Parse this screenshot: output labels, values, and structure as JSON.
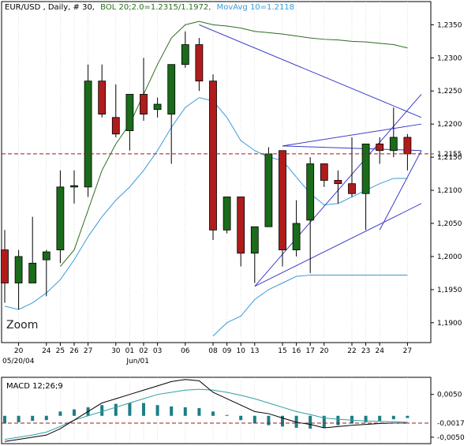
{
  "chart_data": {
    "type": "candlestick",
    "header": {
      "symbol_text": "EUR/USD , Daily, # 30,",
      "bol_text": "BOL 20;2.0=1.2315/1.1972,",
      "ma_text": "MovAvg 10=1.2118"
    },
    "watermark": "Zoom",
    "price_axis": {
      "ylim": [
        1.187,
        1.2385
      ],
      "ticks": [
        "1,2350",
        "1,2300",
        "1,2250",
        "1,2200",
        "1,2150",
        "1,2100",
        "1,2050",
        "1,2000",
        "1,1950",
        "1,1900"
      ],
      "tick_values": [
        1.235,
        1.23,
        1.225,
        1.22,
        1.215,
        1.21,
        1.205,
        1.2,
        1.195,
        1.19
      ],
      "current_price": 1.2155,
      "current_price_label": "1,2155"
    },
    "x_axis": {
      "day_labels": [
        "20",
        "24",
        "25",
        "26",
        "27",
        "30",
        "01",
        "02",
        "03",
        "06",
        "08",
        "09",
        "10",
        "13",
        "15",
        "16",
        "17",
        "20",
        "22",
        "23",
        "24",
        "27"
      ],
      "day_label_candle_index": [
        1,
        3,
        4,
        5,
        6,
        8,
        9,
        10,
        11,
        13,
        15,
        16,
        17,
        18,
        20,
        21,
        22,
        23,
        25,
        26,
        27,
        29
      ],
      "date_labels": [
        "05/20/04",
        "Jun/01"
      ],
      "date_label_candle_index": [
        0,
        9
      ]
    },
    "candles": [
      {
        "o": 1.201,
        "c": 1.196,
        "h": 1.204,
        "l": 1.193
      },
      {
        "o": 1.196,
        "c": 1.2,
        "h": 1.201,
        "l": 1.192
      },
      {
        "o": 1.196,
        "c": 1.199,
        "h": 1.206,
        "l": 1.196
      },
      {
        "o": 1.1995,
        "c": 1.2007,
        "h": 1.201,
        "l": 1.194
      },
      {
        "o": 1.201,
        "c": 1.2105,
        "h": 1.213,
        "l": 1.199
      },
      {
        "o": 1.2105,
        "c": 1.2107,
        "h": 1.213,
        "l": 1.208
      },
      {
        "o": 1.2105,
        "c": 1.2265,
        "h": 1.229,
        "l": 1.209
      },
      {
        "o": 1.2265,
        "c": 1.2215,
        "h": 1.229,
        "l": 1.221
      },
      {
        "o": 1.221,
        "c": 1.2185,
        "h": 1.226,
        "l": 1.218
      },
      {
        "o": 1.219,
        "c": 1.2245,
        "h": 1.2245,
        "l": 1.216
      },
      {
        "o": 1.2245,
        "c": 1.2215,
        "h": 1.23,
        "l": 1.2205
      },
      {
        "o": 1.2222,
        "c": 1.223,
        "h": 1.224,
        "l": 1.221
      },
      {
        "o": 1.2215,
        "c": 1.229,
        "h": 1.229,
        "l": 1.214
      },
      {
        "o": 1.229,
        "c": 1.232,
        "h": 1.234,
        "l": 1.2285
      },
      {
        "o": 1.232,
        "c": 1.2265,
        "h": 1.233,
        "l": 1.225
      },
      {
        "o": 1.2265,
        "c": 1.204,
        "h": 1.2275,
        "l": 1.2025
      },
      {
        "o": 1.204,
        "c": 1.209,
        "h": 1.209,
        "l": 1.2035
      },
      {
        "o": 1.209,
        "c": 1.2005,
        "h": 1.209,
        "l": 1.1985
      },
      {
        "o": 1.2005,
        "c": 1.2045,
        "h": 1.2045,
        "l": 1.196
      },
      {
        "o": 1.2045,
        "c": 1.2155,
        "h": 1.2165,
        "l": 1.2045
      },
      {
        "o": 1.216,
        "c": 1.201,
        "h": 1.216,
        "l": 1.1985
      },
      {
        "o": 1.201,
        "c": 1.205,
        "h": 1.2085,
        "l": 1.2
      },
      {
        "o": 1.2055,
        "c": 1.214,
        "h": 1.215,
        "l": 1.1975
      },
      {
        "o": 1.214,
        "c": 1.2115,
        "h": 1.214,
        "l": 1.2105
      },
      {
        "o": 1.2115,
        "c": 1.211,
        "h": 1.213,
        "l": 1.208
      },
      {
        "o": 1.211,
        "c": 1.2095,
        "h": 1.218,
        "l": 1.209
      },
      {
        "o": 1.2095,
        "c": 1.217,
        "h": 1.217,
        "l": 1.204
      },
      {
        "o": 1.217,
        "c": 1.216,
        "h": 1.218,
        "l": 1.214
      },
      {
        "o": 1.216,
        "c": 1.218,
        "h": 1.2225,
        "l": 1.215
      },
      {
        "o": 1.218,
        "c": 1.2155,
        "h": 1.2185,
        "l": 1.213
      }
    ],
    "bollinger_upper": [
      null,
      null,
      null,
      null,
      1.1985,
      1.201,
      1.207,
      1.213,
      1.217,
      1.22,
      1.2245,
      1.229,
      1.233,
      1.235,
      1.2355,
      1.235,
      1.2348,
      1.2345,
      1.234,
      1.2338,
      1.2336,
      1.2333,
      1.233,
      1.2328,
      1.2327,
      1.2325,
      1.2324,
      1.2322,
      1.232,
      1.2315
    ],
    "bollinger_lower": [
      null,
      null,
      null,
      null,
      null,
      null,
      null,
      null,
      null,
      null,
      null,
      null,
      null,
      null,
      null,
      1.188,
      1.19,
      1.191,
      1.1935,
      1.195,
      1.196,
      1.197,
      1.1972,
      1.1972,
      1.1972,
      1.1972,
      1.1972,
      1.1972,
      1.1972,
      1.1972
    ],
    "moving_average_10": [
      1.1925,
      1.192,
      1.193,
      1.1945,
      1.1965,
      1.1995,
      1.203,
      1.206,
      1.2085,
      1.2105,
      1.213,
      1.216,
      1.2195,
      1.2225,
      1.224,
      1.2235,
      1.221,
      1.2175,
      1.216,
      1.215,
      1.2145,
      1.212,
      1.2095,
      1.2078,
      1.208,
      1.209,
      1.21,
      1.211,
      1.2118,
      1.2118
    ],
    "trendlines": [
      {
        "from": [
          14,
          1.235
        ],
        "to": [
          30,
          1.221
        ]
      },
      {
        "from": [
          18,
          1.1955
        ],
        "to": [
          30,
          1.208
        ]
      },
      {
        "from": [
          18,
          1.1955
        ],
        "to": [
          30,
          1.2245
        ]
      },
      {
        "from": [
          20,
          1.2167
        ],
        "to": [
          30,
          1.22
        ]
      },
      {
        "from": [
          20,
          1.2167
        ],
        "to": [
          30,
          1.216
        ]
      },
      {
        "from": [
          27,
          1.204
        ],
        "to": [
          30,
          1.216
        ]
      }
    ],
    "macd": {
      "title": "MACD 12;26;9",
      "ylim": [
        -0.0065,
        0.009
      ],
      "ticks": [
        "0,0050",
        "-0,0050"
      ],
      "tick_values": [
        0.005,
        -0.005
      ],
      "current_label": "-0,0017",
      "current_value": -0.0017,
      "macd_line": [
        -0.006,
        -0.0055,
        -0.005,
        -0.0045,
        -0.003,
        -0.001,
        0.001,
        0.003,
        0.004,
        0.005,
        0.006,
        0.007,
        0.008,
        0.0085,
        0.0082,
        0.0055,
        0.004,
        0.0025,
        0.001,
        0.0005,
        -0.0005,
        -0.0015,
        -0.002,
        -0.0028,
        -0.0025,
        -0.0022,
        -0.002,
        -0.0018,
        -0.0017,
        -0.0017
      ],
      "signal_line": [
        -0.0055,
        -0.005,
        -0.0045,
        -0.0038,
        -0.0025,
        -0.001,
        0.0,
        0.001,
        0.002,
        0.003,
        0.004,
        0.005,
        0.0055,
        0.006,
        0.0062,
        0.006,
        0.0055,
        0.0048,
        0.004,
        0.003,
        0.002,
        0.001,
        0.0003,
        -0.0005,
        -0.0008,
        -0.001,
        -0.0012,
        -0.0013,
        -0.0014,
        -0.0015
      ],
      "histogram": [
        -0.0018,
        -0.0015,
        -0.0012,
        -0.001,
        0.001,
        0.0015,
        0.002,
        0.0025,
        0.0028,
        0.003,
        0.003,
        0.0025,
        0.0022,
        0.002,
        0.0018,
        0.001,
        0.0002,
        -0.001,
        -0.0018,
        -0.0022,
        -0.0025,
        -0.0028,
        -0.003,
        -0.0028,
        -0.0022,
        -0.0018,
        -0.0015,
        -0.0012,
        -0.0008,
        -0.0005
      ]
    },
    "colors": {
      "bull": "#1a6b1a",
      "bear": "#b01c1c",
      "bollinger": "#2b6e1f",
      "moving_average": "#3a9ad9",
      "trendline": "#3c3ccc",
      "current_price_line": "#9b1b1b",
      "macd_line": "#000000",
      "signal_line": "#2f9ea6",
      "histogram": "#1c7e86",
      "grid": "#c8c8c8"
    }
  }
}
